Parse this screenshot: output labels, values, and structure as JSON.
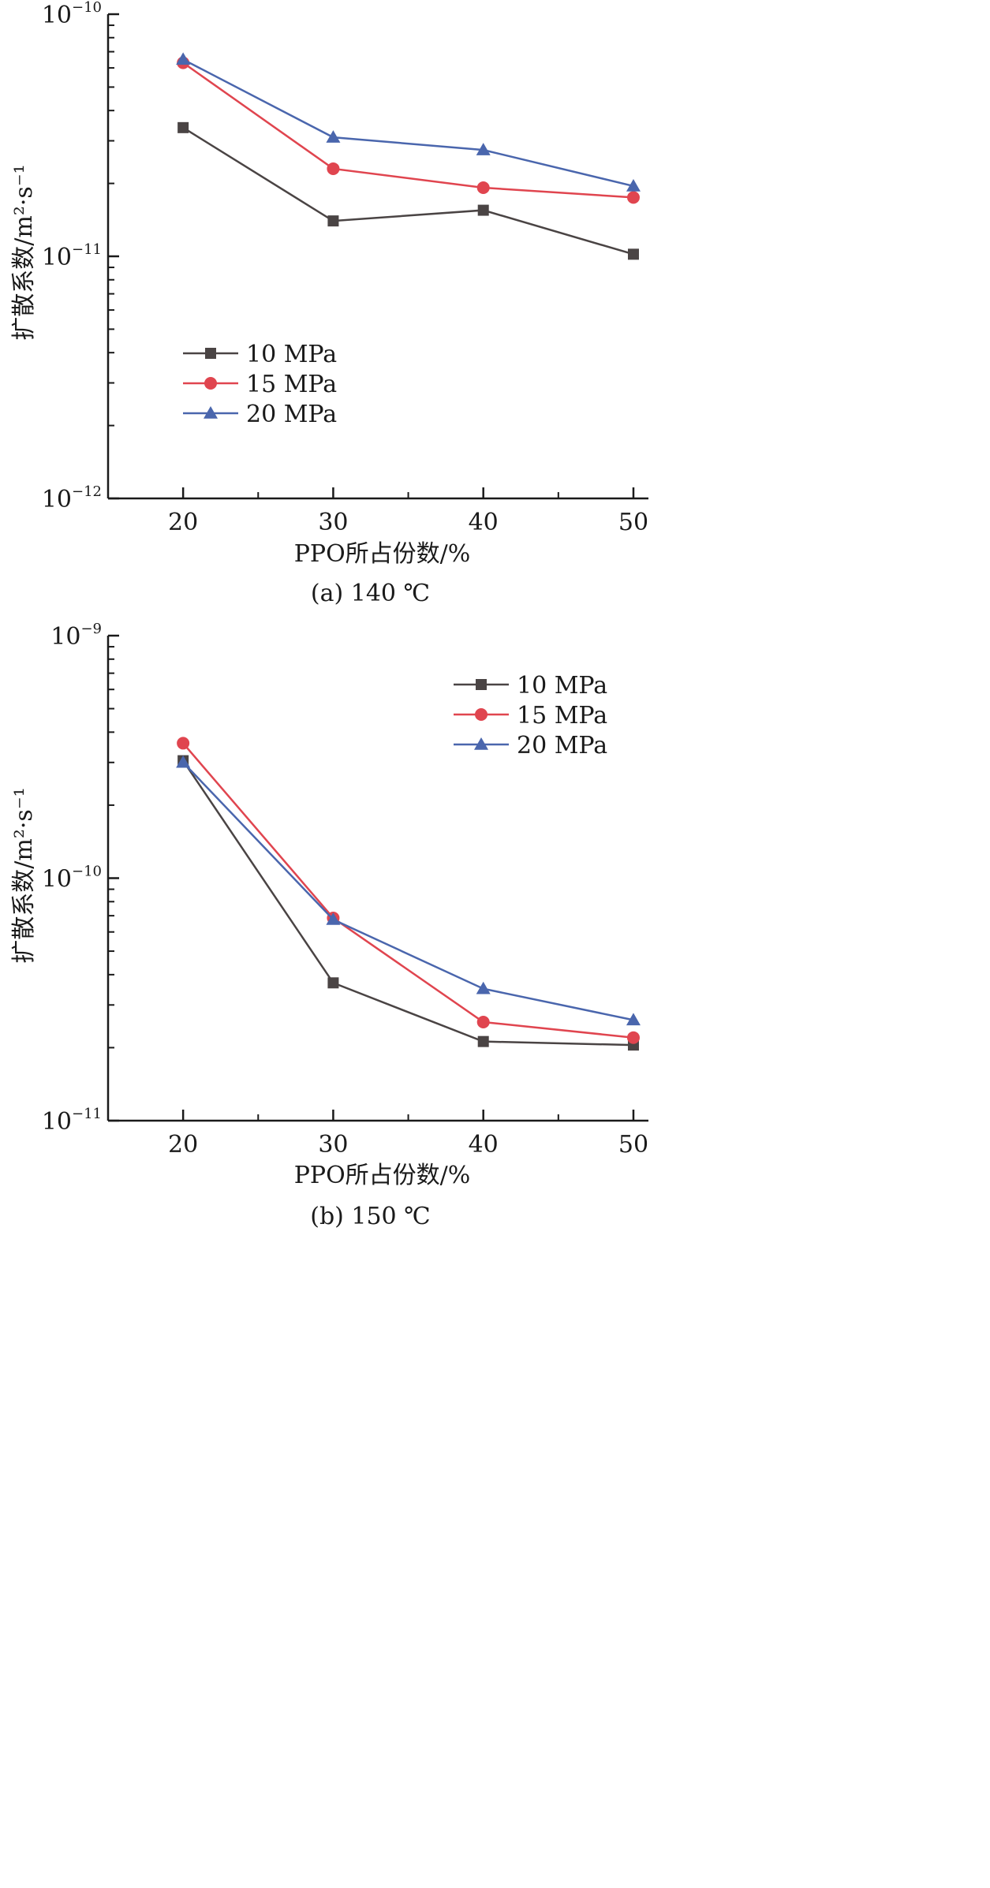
{
  "colors": {
    "10 MPa": "#4a4444",
    "15 MPa": "#e0454f",
    "20 MPa": "#4a66ad",
    "axis": "#1a1a1a"
  },
  "chart_data": [
    {
      "type": "line",
      "caption": "(a) 140 ℃",
      "xlabel": "PPO所占份数/%",
      "ylabel": "扩散系数/m²·s⁻¹",
      "yscale": "log",
      "x": [
        20,
        30,
        40,
        50
      ],
      "xlim": [
        15,
        51
      ],
      "ylim": [
        1e-12,
        1e-10
      ],
      "xticks": [
        "20",
        "30",
        "40",
        "50"
      ],
      "yticks": [
        {
          "value": 1e-10,
          "base": "10",
          "exp": "−10"
        },
        {
          "value": 1e-11,
          "base": "10",
          "exp": "−11"
        },
        {
          "value": 1e-12,
          "base": "10",
          "exp": "−12"
        }
      ],
      "legend_position": "lower-left",
      "series": [
        {
          "name": "10 MPa",
          "marker": "square",
          "values": [
            3.4e-11,
            1.4e-11,
            1.55e-11,
            1.02e-11
          ]
        },
        {
          "name": "15 MPa",
          "marker": "circle",
          "values": [
            6.3e-11,
            2.3e-11,
            1.92e-11,
            1.75e-11
          ]
        },
        {
          "name": "20 MPa",
          "marker": "triangle",
          "values": [
            6.5e-11,
            3.1e-11,
            2.75e-11,
            1.95e-11
          ]
        }
      ]
    },
    {
      "type": "line",
      "caption": "(b) 150 ℃",
      "xlabel": "PPO所占份数/%",
      "ylabel": "扩散系数/m²·s⁻¹",
      "yscale": "log",
      "x": [
        20,
        30,
        40,
        50
      ],
      "xlim": [
        15,
        51
      ],
      "ylim": [
        1e-11,
        1e-09
      ],
      "xticks": [
        "20",
        "30",
        "40",
        "50"
      ],
      "yticks": [
        {
          "value": 1e-09,
          "base": "10",
          "exp": "−9"
        },
        {
          "value": 1e-10,
          "base": "10",
          "exp": "−10"
        },
        {
          "value": 1e-11,
          "base": "10",
          "exp": "−11"
        }
      ],
      "legend_position": "top-right",
      "series": [
        {
          "name": "10 MPa",
          "marker": "square",
          "values": [
            3.05e-10,
            3.7e-11,
            2.12e-11,
            2.05e-11
          ]
        },
        {
          "name": "15 MPa",
          "marker": "circle",
          "values": [
            3.6e-10,
            6.85e-11,
            2.55e-11,
            2.2e-11
          ]
        },
        {
          "name": "20 MPa",
          "marker": "triangle",
          "values": [
            3e-10,
            6.75e-11,
            3.5e-11,
            2.6e-11
          ]
        }
      ]
    }
  ]
}
